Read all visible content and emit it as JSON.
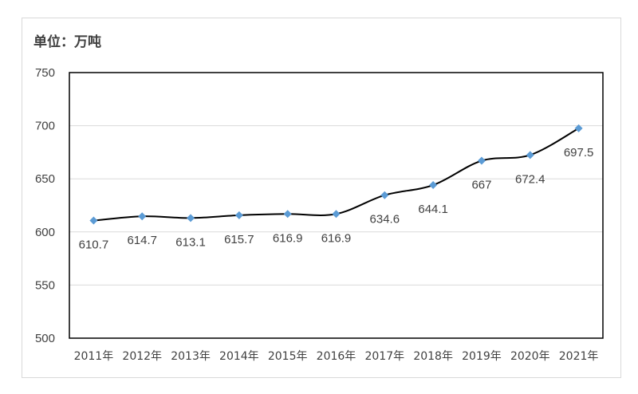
{
  "chart_data": {
    "type": "line",
    "unit_label": "单位：万吨",
    "categories": [
      "2011年",
      "2012年",
      "2013年",
      "2014年",
      "2015年",
      "2016年",
      "2017年",
      "2018年",
      "2019年",
      "2020年",
      "2021年"
    ],
    "values": [
      610.7,
      614.7,
      613.1,
      615.7,
      616.9,
      616.9,
      634.6,
      644.1,
      667,
      672.4,
      697.5
    ],
    "value_labels": [
      "610.7",
      "614.7",
      "613.1",
      "615.7",
      "616.9",
      "616.9",
      "634.6",
      "644.1",
      "667",
      "672.4",
      "697.5"
    ],
    "ylim": [
      500,
      750
    ],
    "yticks": [
      500,
      550,
      600,
      650,
      700,
      750
    ],
    "grid": true,
    "line_color": "#000000",
    "marker_color": "#5b9bd5",
    "grid_color": "#d9d9d9",
    "marker": "diamond",
    "smooth": true
  }
}
